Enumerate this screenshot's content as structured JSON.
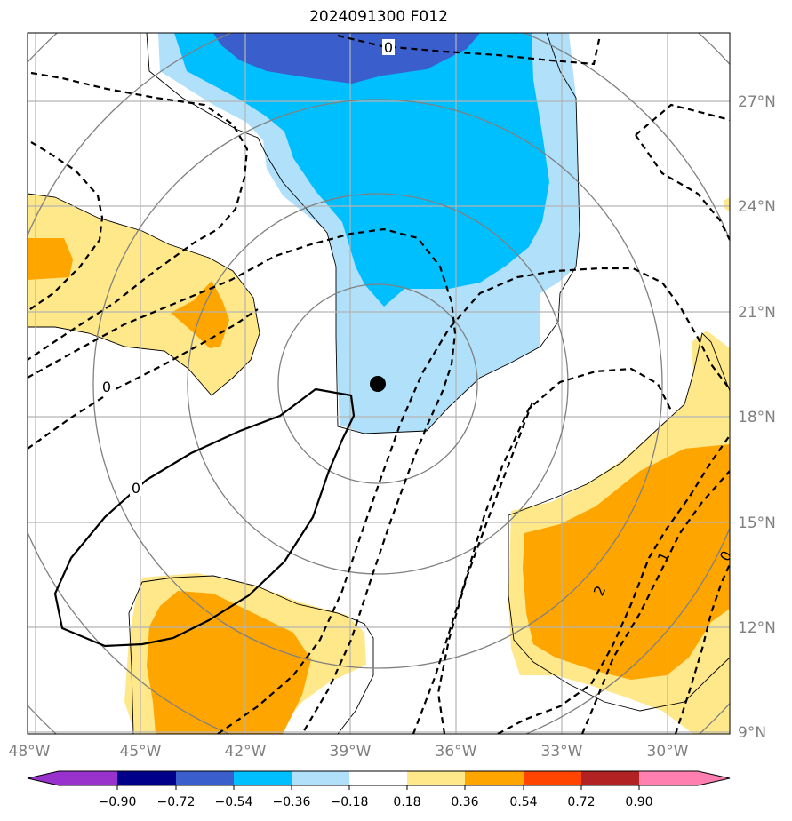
{
  "title": "2024091300 F012",
  "map": {
    "lon_ticks": [
      "48°W",
      "45°W",
      "42°W",
      "39°W",
      "36°W",
      "33°W",
      "30°W"
    ],
    "lat_ticks": [
      "27°N",
      "24°N",
      "21°N",
      "18°N",
      "15°N",
      "12°N",
      "9°N"
    ],
    "contour_labels": [
      "0",
      "0",
      "0",
      "2",
      "1",
      "0"
    ],
    "center_marker": "storm-center-dot"
  },
  "colorbar": {
    "tick_labels": [
      "−0.90",
      "−0.72",
      "−0.54",
      "−0.36",
      "−0.18",
      "0.18",
      "0.36",
      "0.54",
      "0.72",
      "0.90"
    ],
    "colors": [
      "#9932cc",
      "#00008b",
      "#3a5fcd",
      "#00bfff",
      "#b0e0fa",
      "#ffffff",
      "#ffe88a",
      "#ffa500",
      "#ff4500",
      "#b22222",
      "#ff80b0"
    ]
  },
  "colors": {
    "grid": "#b4b4b4",
    "range_rings": "#808080",
    "tick_text": "#808080"
  }
}
